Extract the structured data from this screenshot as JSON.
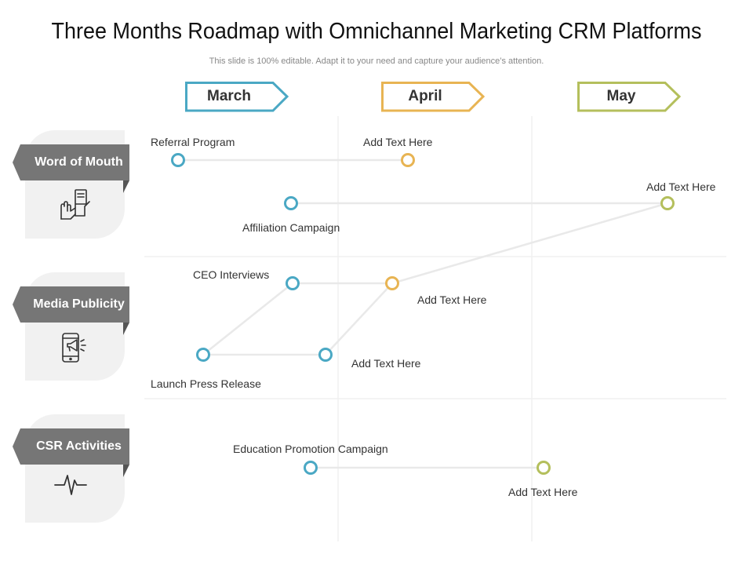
{
  "title": "Three Months Roadmap with Omnichannel Marketing CRM Platforms",
  "subtitle": "This slide is 100% editable. Adapt it to your need and capture your audience’s attention.",
  "months": [
    {
      "label": "March",
      "color": "#4aa8c4"
    },
    {
      "label": "April",
      "color": "#e8b453"
    },
    {
      "label": "May",
      "color": "#b4bf5c"
    }
  ],
  "rows": [
    {
      "label": "Word of Mouth",
      "icon": "hand-document-icon"
    },
    {
      "label": "Media Publicity",
      "icon": "phone-megaphone-icon"
    },
    {
      "label": "CSR Activities",
      "icon": "heartbeat-icon"
    }
  ],
  "nodes": {
    "referral_program": "Referral Program",
    "word_add_text_1": "Add Text Here",
    "affiliation_campaign": "Affiliation Campaign",
    "word_add_text_2": "Add Text Here",
    "ceo_interviews": "CEO Interviews",
    "media_add_text_1": "Add Text Here",
    "launch_press_release": "Launch Press Release",
    "media_add_text_2": "Add Text Here",
    "education_promotion_campaign": "Education Promotion Campaign",
    "csr_add_text": "Add Text Here"
  },
  "colors": {
    "row_label_bg": "#767676",
    "row_label_shadow": "#555555",
    "card_bg": "#f1f1f1",
    "connector": "#e9e9e9",
    "grid": "#f0f0f0"
  }
}
